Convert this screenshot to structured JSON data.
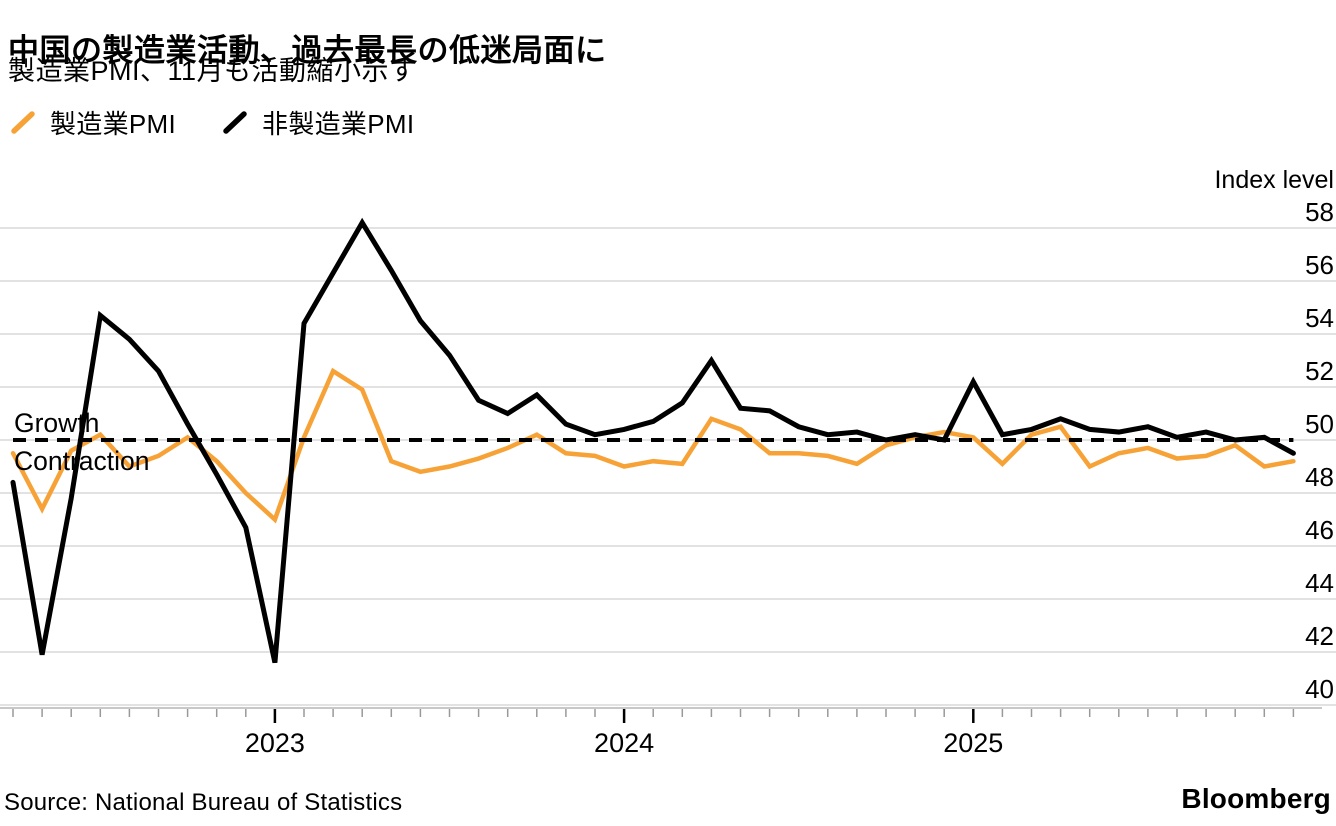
{
  "header": {
    "title": "中国の製造業活動、過去最長の低迷局面に",
    "subtitle": "製造業PMI、11月も活動縮小示す"
  },
  "footer": {
    "source": "Source: National Bureau of Statistics",
    "brand": "Bloomberg"
  },
  "chart_data": {
    "type": "line",
    "ylabel": "Index level",
    "ylim": [
      40,
      58
    ],
    "yticks": [
      40,
      42,
      44,
      46,
      48,
      50,
      52,
      54,
      56,
      58
    ],
    "grid": "horizontal",
    "legend_position": "top-left",
    "baseline_value": 50,
    "baseline_style": "dashed",
    "baseline_labels": {
      "above": "Growth",
      "below": "Contraction"
    },
    "frequency": "monthly",
    "x_range": [
      "2022-03",
      "2025-11"
    ],
    "x_tick_labels": [
      "2023",
      "2024",
      "2025"
    ],
    "year_ticks": [
      {
        "label": "2023",
        "month_index": 9
      },
      {
        "label": "2024",
        "month_index": 21
      },
      {
        "label": "2025",
        "month_index": 33
      }
    ],
    "series": [
      {
        "name": "製造業PMI",
        "color": "#F7A237",
        "values": [
          49.5,
          47.4,
          49.6,
          50.2,
          49.0,
          49.4,
          50.1,
          49.2,
          48.0,
          47.0,
          50.1,
          52.6,
          51.9,
          49.2,
          48.8,
          49.0,
          49.3,
          49.7,
          50.2,
          49.5,
          49.4,
          49.0,
          49.2,
          49.1,
          50.8,
          50.4,
          49.5,
          49.5,
          49.4,
          49.1,
          49.8,
          50.1,
          50.3,
          50.1,
          49.1,
          50.2,
          50.5,
          49.0,
          49.5,
          49.7,
          49.3,
          49.4,
          49.8,
          49.0,
          49.2
        ]
      },
      {
        "name": "非製造業PMI",
        "color": "#000000",
        "values": [
          48.4,
          41.9,
          47.8,
          54.7,
          53.8,
          52.6,
          50.6,
          48.7,
          46.7,
          41.6,
          54.4,
          56.3,
          58.2,
          56.4,
          54.5,
          53.2,
          51.5,
          51.0,
          51.7,
          50.6,
          50.2,
          50.4,
          50.7,
          51.4,
          53.0,
          51.2,
          51.1,
          50.5,
          50.2,
          50.3,
          50.0,
          50.2,
          50.0,
          52.2,
          50.2,
          50.4,
          50.8,
          50.4,
          50.3,
          50.5,
          50.1,
          50.3,
          50.0,
          50.1,
          49.5
        ]
      }
    ]
  },
  "style": {
    "gridline_color": "#d9d9d9",
    "axis_line_color": "#b5b5b5",
    "minor_tick_color": "#999999",
    "year_tick_color": "#000000",
    "text_color": "#000000"
  }
}
